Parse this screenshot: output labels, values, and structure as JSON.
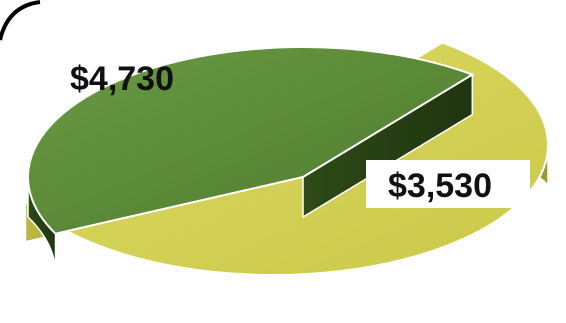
{
  "chart_data": {
    "type": "pie",
    "title": "",
    "slices": [
      {
        "label": "$4,730",
        "value": 4730,
        "color": "#d4d353"
      },
      {
        "label": "$3,530",
        "value": 3530,
        "color": "#5b8a38"
      }
    ],
    "legend": "none",
    "style": "3d-exploded"
  }
}
